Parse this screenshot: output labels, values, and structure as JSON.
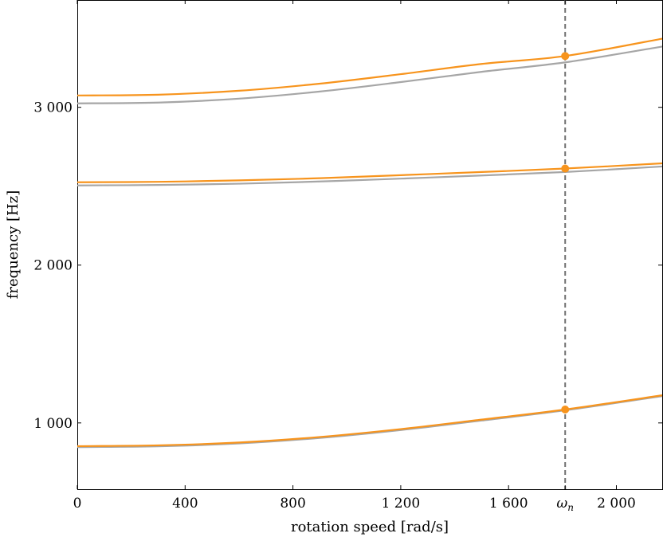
{
  "chart_data": {
    "type": "line",
    "xlabel": "rotation speed [rad/s]",
    "ylabel": "frequency [Hz]",
    "xlim": [
      0,
      2170
    ],
    "ylim": [
      580,
      3680
    ],
    "x_ticks": [
      {
        "value": 0,
        "label": "0"
      },
      {
        "value": 400,
        "label": "400"
      },
      {
        "value": 800,
        "label": "800"
      },
      {
        "value": 1200,
        "label": "1 200"
      },
      {
        "value": 1600,
        "label": "1 600"
      },
      {
        "value": 1810,
        "label": "ω_n"
      },
      {
        "value": 2000,
        "label": "2 000"
      }
    ],
    "y_ticks": [
      {
        "value": 1000,
        "label": "1 000"
      },
      {
        "value": 2000,
        "label": "2 000"
      },
      {
        "value": 3000,
        "label": "3 000"
      }
    ],
    "vertical_marker": {
      "x": 1810,
      "label": "ω_n",
      "style": "dashed",
      "color": "#707070"
    },
    "series": [
      {
        "color": "#a6a6a6",
        "x": [
          0,
          300,
          600,
          900,
          1200,
          1500,
          1810,
          2170
        ],
        "y": [
          847,
          852,
          870,
          905,
          955,
          1015,
          1080,
          1170
        ]
      },
      {
        "color": "#f7941d",
        "x": [
          0,
          300,
          600,
          900,
          1200,
          1500,
          1810,
          2170
        ],
        "y": [
          853,
          858,
          876,
          911,
          961,
          1021,
          1085,
          1175
        ]
      },
      {
        "color": "#a6a6a6",
        "x": [
          0,
          300,
          600,
          900,
          1200,
          1500,
          1810,
          2170
        ],
        "y": [
          2505,
          2508,
          2516,
          2530,
          2548,
          2568,
          2590,
          2625
        ]
      },
      {
        "color": "#f7941d",
        "x": [
          0,
          300,
          600,
          900,
          1200,
          1500,
          1810,
          2170
        ],
        "y": [
          2525,
          2528,
          2537,
          2551,
          2570,
          2590,
          2612,
          2645
        ]
      },
      {
        "color": "#a6a6a6",
        "x": [
          0,
          300,
          600,
          900,
          1200,
          1500,
          1810,
          2170
        ],
        "y": [
          3025,
          3030,
          3055,
          3100,
          3160,
          3225,
          3285,
          3385
        ]
      },
      {
        "color": "#f7941d",
        "x": [
          0,
          300,
          600,
          900,
          1200,
          1500,
          1810,
          2170
        ],
        "y": [
          3075,
          3080,
          3105,
          3150,
          3210,
          3275,
          3325,
          3435
        ]
      }
    ],
    "markers": [
      {
        "x": 1810,
        "y": 1085,
        "color": "#f7941d"
      },
      {
        "x": 1810,
        "y": 2612,
        "color": "#f7941d"
      },
      {
        "x": 1810,
        "y": 3325,
        "color": "#f7941d"
      }
    ],
    "grid": false,
    "legend": "none"
  }
}
